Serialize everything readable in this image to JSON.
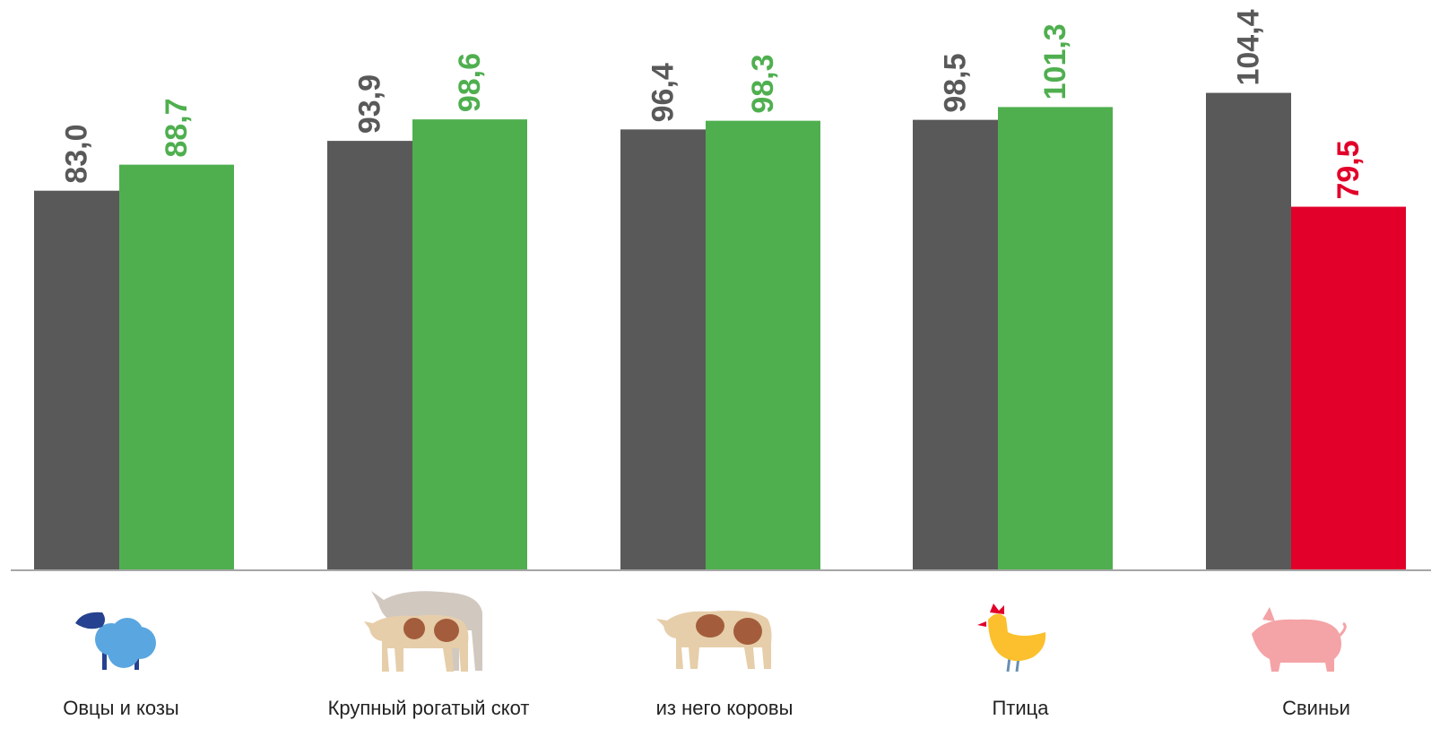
{
  "chart_data": {
    "type": "bar",
    "title": "",
    "xlabel": "",
    "ylabel": "",
    "ylim": [
      0,
      110
    ],
    "grid": false,
    "categories": [
      "Овцы и козы",
      "Крупный рогатый скот",
      "из него коровы",
      "Птица",
      "Свиньи"
    ],
    "category_icons": [
      "sheep-icon",
      "cattle-icon",
      "cow-icon",
      "chicken-icon",
      "pig-icon"
    ],
    "series": [
      {
        "values": [
          83.0,
          93.9,
          96.4,
          98.5,
          104.4
        ],
        "labels": [
          "83,0",
          "93,9",
          "96,4",
          "98,5",
          "104,4"
        ],
        "color": "#595959"
      },
      {
        "values": [
          88.7,
          98.6,
          98.3,
          101.3,
          79.5
        ],
        "labels": [
          "88,7",
          "98,6",
          "98,3",
          "101,3",
          "79,5"
        ],
        "colors": [
          "#4faf4f",
          "#4faf4f",
          "#4faf4f",
          "#4faf4f",
          "#e2002a"
        ],
        "label_colors": [
          "#4faf4f",
          "#4faf4f",
          "#4faf4f",
          "#4faf4f",
          "#e2002a"
        ]
      }
    ],
    "value_label_color_first_series": "#595959"
  }
}
